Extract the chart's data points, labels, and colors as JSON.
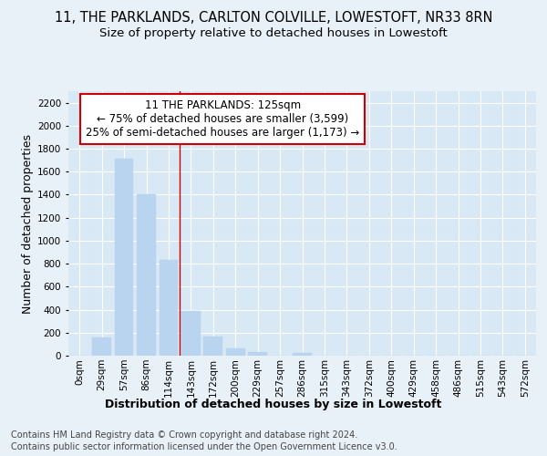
{
  "title_line1": "11, THE PARKLANDS, CARLTON COLVILLE, LOWESTOFT, NR33 8RN",
  "title_line2": "Size of property relative to detached houses in Lowestoft",
  "xlabel": "Distribution of detached houses by size in Lowestoft",
  "ylabel": "Number of detached properties",
  "categories": [
    "0sqm",
    "29sqm",
    "57sqm",
    "86sqm",
    "114sqm",
    "143sqm",
    "172sqm",
    "200sqm",
    "229sqm",
    "257sqm",
    "286sqm",
    "315sqm",
    "343sqm",
    "372sqm",
    "400sqm",
    "429sqm",
    "458sqm",
    "486sqm",
    "515sqm",
    "543sqm",
    "572sqm"
  ],
  "values": [
    0,
    155,
    1710,
    1400,
    830,
    390,
    165,
    65,
    30,
    0,
    25,
    0,
    0,
    0,
    0,
    0,
    0,
    0,
    0,
    0,
    0
  ],
  "bar_color": "#b8d4ee",
  "annotation_box_text": "11 THE PARKLANDS: 125sqm\n← 75% of detached houses are smaller (3,599)\n25% of semi-detached houses are larger (1,173) →",
  "annotation_box_color": "#cc0000",
  "vline_x": 4.5,
  "ylim": [
    0,
    2300
  ],
  "yticks": [
    0,
    200,
    400,
    600,
    800,
    1000,
    1200,
    1400,
    1600,
    1800,
    2000,
    2200
  ],
  "footnote_line1": "Contains HM Land Registry data © Crown copyright and database right 2024.",
  "footnote_line2": "Contains public sector information licensed under the Open Government Licence v3.0.",
  "bg_color": "#e8f0f8",
  "plot_bg_color": "#d8e8f4",
  "grid_color": "#ffffff",
  "title_fontsize": 10.5,
  "subtitle_fontsize": 9.5,
  "axis_label_fontsize": 9,
  "tick_fontsize": 7.5,
  "annotation_fontsize": 8.5,
  "footnote_fontsize": 7
}
